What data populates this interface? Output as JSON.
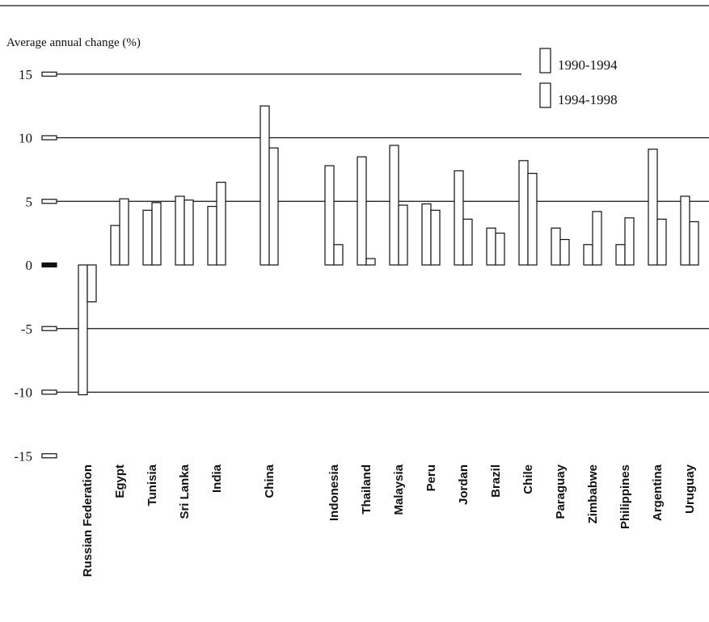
{
  "chart_data": {
    "type": "bar",
    "ylabel": "Average annual change (%)",
    "ylim": [
      -15,
      15
    ],
    "yticks": [
      15,
      10,
      5,
      0,
      -5,
      -10,
      -15
    ],
    "categories": [
      "Russian Federation",
      "Egypt",
      "Tunisia",
      "Sri Lanka",
      "India",
      "China",
      "Indonesia",
      "Thailand",
      "Malaysia",
      "Peru",
      "Jordan",
      "Brazil",
      "Chile",
      "Paraguay",
      "Zimbabwe",
      "Philippines",
      "Argentina",
      "Uruguay"
    ],
    "series": [
      {
        "name": "1990-1994",
        "values": [
          -10.2,
          3.1,
          4.3,
          5.4,
          4.6,
          12.5,
          7.8,
          8.5,
          9.4,
          4.8,
          7.4,
          2.9,
          8.2,
          2.9,
          1.6,
          1.6,
          9.1,
          5.4
        ]
      },
      {
        "name": "1994-1998",
        "values": [
          -2.9,
          5.2,
          4.9,
          5.1,
          6.5,
          9.2,
          1.6,
          0.5,
          4.7,
          4.3,
          3.6,
          2.5,
          7.2,
          2.0,
          4.2,
          3.7,
          3.6,
          3.4
        ]
      }
    ],
    "legend_position": "top-right",
    "grid": true
  }
}
